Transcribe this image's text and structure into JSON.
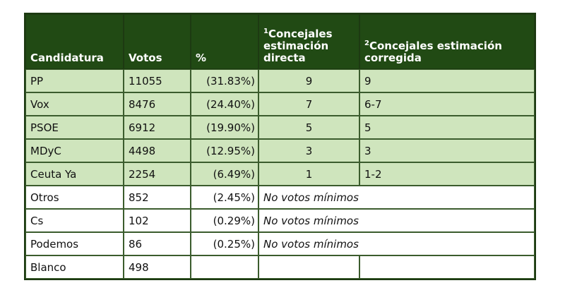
{
  "table": {
    "headers": {
      "candidatura": "Candidatura",
      "votos": "Votos",
      "pct": "%",
      "directa_sup": "1",
      "directa": "Concejales estimación directa",
      "corregida_sup": "2",
      "corregida": "Concejales estimación corregida"
    },
    "rows": [
      {
        "candidatura": "PP",
        "votos": "11055",
        "pct": "(31.83%)",
        "directa": "9",
        "corregida": "9"
      },
      {
        "candidatura": "Vox",
        "votos": "8476",
        "pct": "(24.40%)",
        "directa": "7",
        "corregida": "6-7"
      },
      {
        "candidatura": "PSOE",
        "votos": "6912",
        "pct": "(19.90%)",
        "directa": "5",
        "corregida": "5"
      },
      {
        "candidatura": "MDyC",
        "votos": "4498",
        "pct": "(12.95%)",
        "directa": "3",
        "corregida": "3"
      },
      {
        "candidatura": "Ceuta Ya",
        "votos": "2254",
        "pct": "(6.49%)",
        "directa": "1",
        "corregida": "1-2"
      },
      {
        "candidatura": "Otros",
        "votos": "852",
        "pct": "(2.45%)",
        "note": "No votos mínimos"
      },
      {
        "candidatura": "Cs",
        "votos": "102",
        "pct": "(0.29%)",
        "note": "No votos mínimos"
      },
      {
        "candidatura": "Podemos",
        "votos": "86",
        "pct": "(0.25%)",
        "note": "No votos mínimos"
      },
      {
        "candidatura": "Blanco",
        "votos": "498",
        "pct": "",
        "note": ""
      }
    ]
  },
  "colors": {
    "header_bg": "#214a14",
    "row_green": "#cfe5bd",
    "row_white": "#ffffff"
  }
}
